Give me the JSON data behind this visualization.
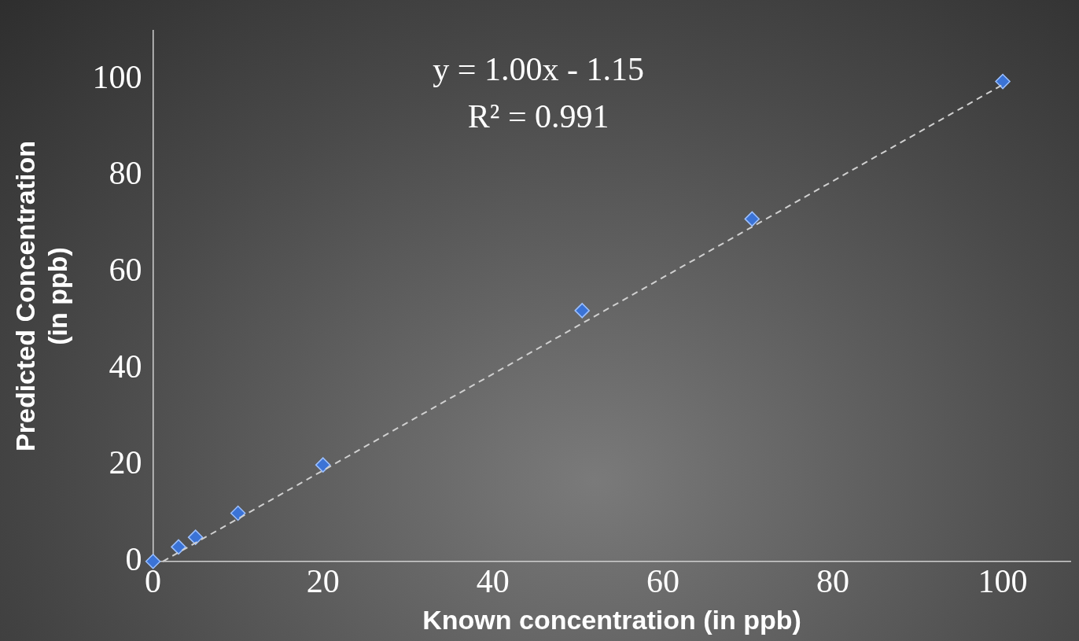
{
  "chart_data": {
    "type": "scatter",
    "xlabel": "Known concentration (in ppb)",
    "ylabel": "Predicted Concentration (in ppb)",
    "annotations": [
      "y = 1.00x - 1.15",
      "R² = 0.991"
    ],
    "marker": "diamond",
    "grid": false,
    "xlim": [
      0,
      108
    ],
    "xticks": [
      0,
      20,
      40,
      60,
      80,
      100
    ],
    "ylim": [
      0,
      110
    ],
    "yticks": [
      0,
      20,
      40,
      60,
      80,
      100
    ],
    "series": [
      {
        "color": "#3b73d6",
        "x": [
          0,
          3,
          5,
          10,
          20,
          50.5,
          70.5,
          100
        ],
        "values": [
          0,
          3,
          5,
          10,
          20,
          52,
          71,
          99.5
        ]
      },
      {
        "type": "line",
        "color": "#d0d0d0",
        "line_style": "dashed",
        "marker": "none",
        "x": [
          1.15,
          100
        ],
        "values": [
          0,
          98.85
        ]
      }
    ]
  }
}
